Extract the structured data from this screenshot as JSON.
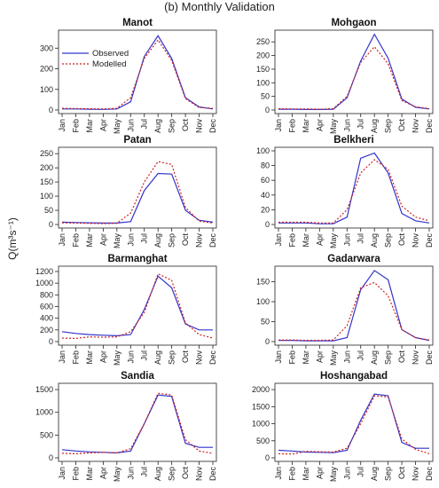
{
  "figure_title": "(b) Monthly Validation",
  "ylabel": "Q(m³s⁻¹)",
  "legend": [
    {
      "label": "Observed",
      "color": "#3333cc",
      "style": "solid"
    },
    {
      "label": "Modelled",
      "color": "#cc2222",
      "style": "dotted"
    }
  ],
  "chart_data": [
    {
      "type": "line",
      "title": "Manot",
      "categories": [
        "Jan",
        "Feb",
        "Mar",
        "Apr",
        "May",
        "Jun",
        "Jul",
        "Aug",
        "Sep",
        "Oct",
        "Nov",
        "Dec"
      ],
      "yticks": [
        0,
        100,
        200,
        300
      ],
      "ylim": [
        0,
        370
      ],
      "series": [
        {
          "name": "Observed",
          "values": [
            5,
            5,
            4,
            3,
            5,
            40,
            260,
            360,
            250,
            60,
            15,
            5
          ]
        },
        {
          "name": "Modelled",
          "values": [
            8,
            7,
            6,
            5,
            8,
            60,
            250,
            340,
            240,
            55,
            12,
            8
          ]
        }
      ]
    },
    {
      "type": "line",
      "title": "Mohgaon",
      "categories": [
        "Jan",
        "Feb",
        "Mar",
        "Apr",
        "May",
        "Jun",
        "Jul",
        "Aug",
        "Sep",
        "Oct",
        "Nov",
        "Dec"
      ],
      "yticks": [
        0,
        50,
        100,
        150,
        200,
        250
      ],
      "ylim": [
        0,
        280
      ],
      "series": [
        {
          "name": "Observed",
          "values": [
            3,
            3,
            2,
            2,
            3,
            45,
            180,
            278,
            190,
            40,
            10,
            4
          ]
        },
        {
          "name": "Modelled",
          "values": [
            5,
            4,
            4,
            3,
            5,
            50,
            175,
            232,
            170,
            35,
            12,
            5
          ]
        }
      ]
    },
    {
      "type": "line",
      "title": "Patan",
      "categories": [
        "Jan",
        "Feb",
        "Mar",
        "Apr",
        "May",
        "Jun",
        "Jul",
        "Aug",
        "Sep",
        "Oct",
        "Nov",
        "Dec"
      ],
      "yticks": [
        0,
        50,
        100,
        150,
        200,
        250
      ],
      "ylim": [
        0,
        260
      ],
      "series": [
        {
          "name": "Observed",
          "values": [
            8,
            7,
            6,
            5,
            5,
            10,
            120,
            180,
            178,
            50,
            15,
            8
          ]
        },
        {
          "name": "Modelled",
          "values": [
            6,
            5,
            4,
            3,
            4,
            40,
            150,
            222,
            212,
            60,
            12,
            5
          ]
        }
      ]
    },
    {
      "type": "line",
      "title": "Belkheri",
      "categories": [
        "Jan",
        "Feb",
        "Mar",
        "Apr",
        "May",
        "Jun",
        "Jul",
        "Aug",
        "Sep",
        "Oct",
        "Nov",
        "Dec"
      ],
      "yticks": [
        0,
        20,
        40,
        60,
        80,
        100
      ],
      "ylim": [
        0,
        100
      ],
      "series": [
        {
          "name": "Observed",
          "values": [
            2,
            2,
            2,
            1,
            1,
            10,
            90,
            97,
            70,
            15,
            5,
            2
          ]
        },
        {
          "name": "Modelled",
          "values": [
            3,
            3,
            3,
            2,
            2,
            20,
            70,
            88,
            75,
            25,
            10,
            5
          ]
        }
      ]
    },
    {
      "type": "line",
      "title": "Barmanghat",
      "categories": [
        "Jan",
        "Feb",
        "Mar",
        "Apr",
        "May",
        "Jun",
        "Jul",
        "Aug",
        "Sep",
        "Oct",
        "Nov",
        "Dec"
      ],
      "yticks": [
        0,
        200,
        400,
        600,
        800,
        1000,
        1200
      ],
      "ylim": [
        0,
        1230
      ],
      "series": [
        {
          "name": "Observed",
          "values": [
            170,
            140,
            120,
            110,
            100,
            120,
            550,
            1120,
            920,
            300,
            200,
            200
          ]
        },
        {
          "name": "Modelled",
          "values": [
            60,
            55,
            80,
            75,
            80,
            170,
            500,
            1160,
            1050,
            320,
            120,
            60
          ]
        }
      ]
    },
    {
      "type": "line",
      "title": "Gadarwara",
      "categories": [
        "Jan",
        "Feb",
        "Mar",
        "Apr",
        "May",
        "Jun",
        "Jul",
        "Aug",
        "Sep",
        "Oct",
        "Nov",
        "Dec"
      ],
      "yticks": [
        0,
        50,
        100,
        150
      ],
      "ylim": [
        0,
        180
      ],
      "series": [
        {
          "name": "Observed",
          "values": [
            3,
            3,
            2,
            2,
            2,
            10,
            130,
            178,
            155,
            30,
            10,
            3
          ]
        },
        {
          "name": "Modelled",
          "values": [
            4,
            4,
            3,
            3,
            4,
            40,
            135,
            148,
            115,
            30,
            10,
            4
          ]
        }
      ]
    },
    {
      "type": "line",
      "title": "Sandia",
      "categories": [
        "Jan",
        "Feb",
        "Mar",
        "Apr",
        "May",
        "Jun",
        "Jul",
        "Aug",
        "Sep",
        "Oct",
        "Nov",
        "Dec"
      ],
      "yticks": [
        0,
        500,
        1000,
        1500
      ],
      "ylim": [
        0,
        1560
      ],
      "series": [
        {
          "name": "Observed",
          "values": [
            180,
            150,
            130,
            120,
            110,
            150,
            750,
            1380,
            1350,
            320,
            230,
            230
          ]
        },
        {
          "name": "Modelled",
          "values": [
            100,
            90,
            110,
            120,
            110,
            200,
            750,
            1420,
            1380,
            400,
            150,
            100
          ]
        }
      ]
    },
    {
      "type": "line",
      "title": "Hoshangabad",
      "categories": [
        "Jan",
        "Feb",
        "Mar",
        "Apr",
        "May",
        "Jun",
        "Jul",
        "Aug",
        "Sep",
        "Oct",
        "Nov",
        "Dec"
      ],
      "yticks": [
        0,
        500,
        1000,
        1500,
        2000
      ],
      "ylim": [
        0,
        2080
      ],
      "series": [
        {
          "name": "Observed",
          "values": [
            220,
            200,
            170,
            160,
            150,
            220,
            1100,
            1870,
            1820,
            450,
            280,
            280
          ]
        },
        {
          "name": "Modelled",
          "values": [
            120,
            110,
            190,
            180,
            170,
            280,
            1000,
            1820,
            1780,
            550,
            250,
            120
          ]
        }
      ]
    }
  ]
}
